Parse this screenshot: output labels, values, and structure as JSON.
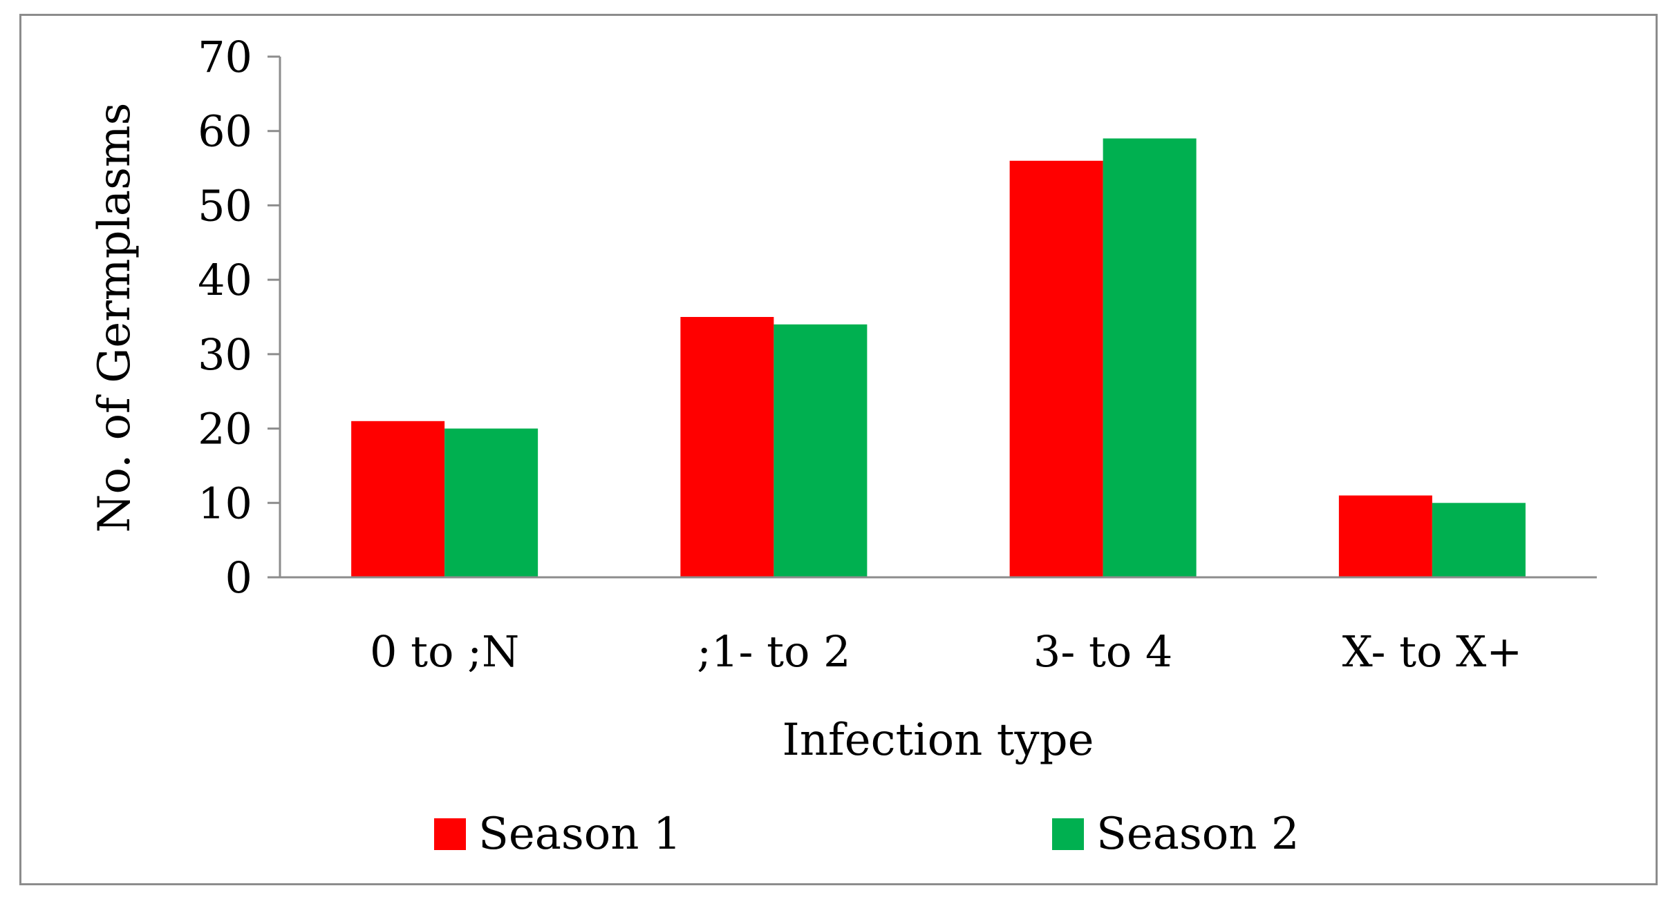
{
  "chart_data": {
    "type": "bar",
    "title": "",
    "xlabel": "Infection type",
    "ylabel": "No. of Germplasms",
    "categories": [
      "0 to ;N",
      ";1- to 2",
      "3- to 4",
      "X- to X+"
    ],
    "series": [
      {
        "name": "Season 1",
        "values": [
          21,
          35,
          56,
          11
        ],
        "color": "#ff0000"
      },
      {
        "name": "Season 2",
        "values": [
          20,
          34,
          59,
          10
        ],
        "color": "#00b050"
      }
    ],
    "ylim": [
      0,
      70
    ],
    "yticks": [
      0,
      10,
      20,
      30,
      40,
      50,
      60,
      70
    ],
    "grid": false,
    "legend": "bottom"
  }
}
